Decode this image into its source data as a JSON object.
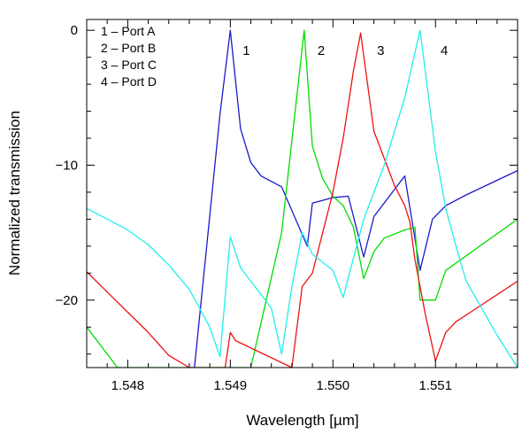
{
  "chart_data": {
    "type": "line",
    "xlabel": "Wavelength [µm]",
    "ylabel": "Normalized transmission",
    "xlim": [
      1.5476,
      1.5518
    ],
    "ylim": [
      -25,
      0.8
    ],
    "xticks": [
      1.548,
      1.549,
      1.55,
      1.551
    ],
    "xtick_labels": [
      "1.548",
      "1.549",
      "1.550",
      "1.551"
    ],
    "yticks": [
      0,
      -10,
      -20
    ],
    "ytick_labels": [
      "0",
      "−10",
      "−20"
    ],
    "grid": false,
    "legend": {
      "placement": "top-left",
      "entries": [
        "1 – Port A",
        "2 – Port B",
        "3 – Port C",
        "4 – Port D"
      ]
    },
    "peak_labels": [
      {
        "text": "1",
        "x": 1.54912,
        "y": -1.5
      },
      {
        "text": "2",
        "x": 1.54985,
        "y": -1.5
      },
      {
        "text": "3",
        "x": 1.55043,
        "y": -1.5
      },
      {
        "text": "4",
        "x": 1.55105,
        "y": -1.5
      }
    ],
    "series": [
      {
        "color": "#1a1acc",
        "x": [
          1.54865,
          1.5489,
          1.549,
          1.5491,
          1.5492,
          1.5493,
          1.5494,
          1.5495,
          1.54975,
          1.5498,
          1.55,
          1.55015,
          1.5503,
          1.5504,
          1.5505,
          1.5506,
          1.5507,
          1.55085,
          1.55097,
          1.5511,
          1.5513,
          1.5518
        ],
        "y": [
          -25,
          -6.2,
          0,
          -7.3,
          -9.8,
          -10.8,
          -11.2,
          -11.6,
          -16.0,
          -12.8,
          -12.4,
          -12.3,
          -16.8,
          -13.8,
          -12.8,
          -11.8,
          -10.8,
          -17.8,
          -14.0,
          -13.0,
          -12.2,
          -10.4
        ]
      },
      {
        "color": "#00dd00",
        "x": [
          1.5476,
          1.5478,
          1.5479,
          1.5492,
          1.5495,
          1.54972,
          1.5498,
          1.5499,
          1.55,
          1.5501,
          1.5502,
          1.5503,
          1.5504,
          1.5505,
          1.5507,
          1.5508,
          1.55085,
          1.551,
          1.5511,
          1.5518
        ],
        "y": [
          -22.0,
          -24.0,
          -25,
          -25,
          -15.0,
          0,
          -8.6,
          -11.0,
          -12.3,
          -13.0,
          -14.6,
          -18.4,
          -16.4,
          -15.4,
          -14.8,
          -14.6,
          -20.0,
          -20.0,
          -17.8,
          -14.0
        ]
      },
      {
        "color": "#ee1111",
        "x": [
          1.5476,
          1.5478,
          1.548,
          1.5482,
          1.5484,
          1.5486,
          1.5488,
          1.5489,
          1.54895,
          1.549,
          1.54905,
          1.5496,
          1.5497,
          1.5498,
          1.5499,
          1.55,
          1.5501,
          1.5502,
          1.55027,
          1.5504,
          1.5506,
          1.5507,
          1.55075,
          1.5508,
          1.5509,
          1.551,
          1.5511,
          1.5512,
          1.5514,
          1.5516,
          1.5518
        ],
        "y": [
          -17.9,
          -19.4,
          -20.9,
          -22.4,
          -24.1,
          -25,
          -25,
          -25,
          -25,
          -22.4,
          -23.0,
          -25,
          -19.0,
          -18.0,
          -15.0,
          -12.0,
          -8.0,
          -3.0,
          -0.2,
          -7.5,
          -11.5,
          -13.0,
          -14.2,
          -17.0,
          -21.0,
          -24.5,
          -22.4,
          -21.6,
          -20.6,
          -19.6,
          -18.6
        ]
      },
      {
        "color": "#22eeee",
        "x": [
          1.5476,
          1.5478,
          1.548,
          1.5482,
          1.5484,
          1.5486,
          1.5488,
          1.5489,
          1.549,
          1.5491,
          1.5492,
          1.5493,
          1.5494,
          1.5495,
          1.5496,
          1.5497,
          1.5498,
          1.55,
          1.5501,
          1.5503,
          1.5505,
          1.5507,
          1.55085,
          1.551,
          1.5511,
          1.5512,
          1.5513,
          1.5516,
          1.5518
        ],
        "y": [
          -13.2,
          -14.0,
          -14.8,
          -15.9,
          -17.4,
          -19.2,
          -22.0,
          -24.2,
          -15.3,
          -17.6,
          -18.6,
          -19.6,
          -20.6,
          -24.0,
          -19.0,
          -15.0,
          -16.6,
          -17.8,
          -19.8,
          -14.0,
          -10.0,
          -5.0,
          0,
          -9.0,
          -13.2,
          -16.0,
          -18.6,
          -22.6,
          -25
        ]
      }
    ]
  }
}
